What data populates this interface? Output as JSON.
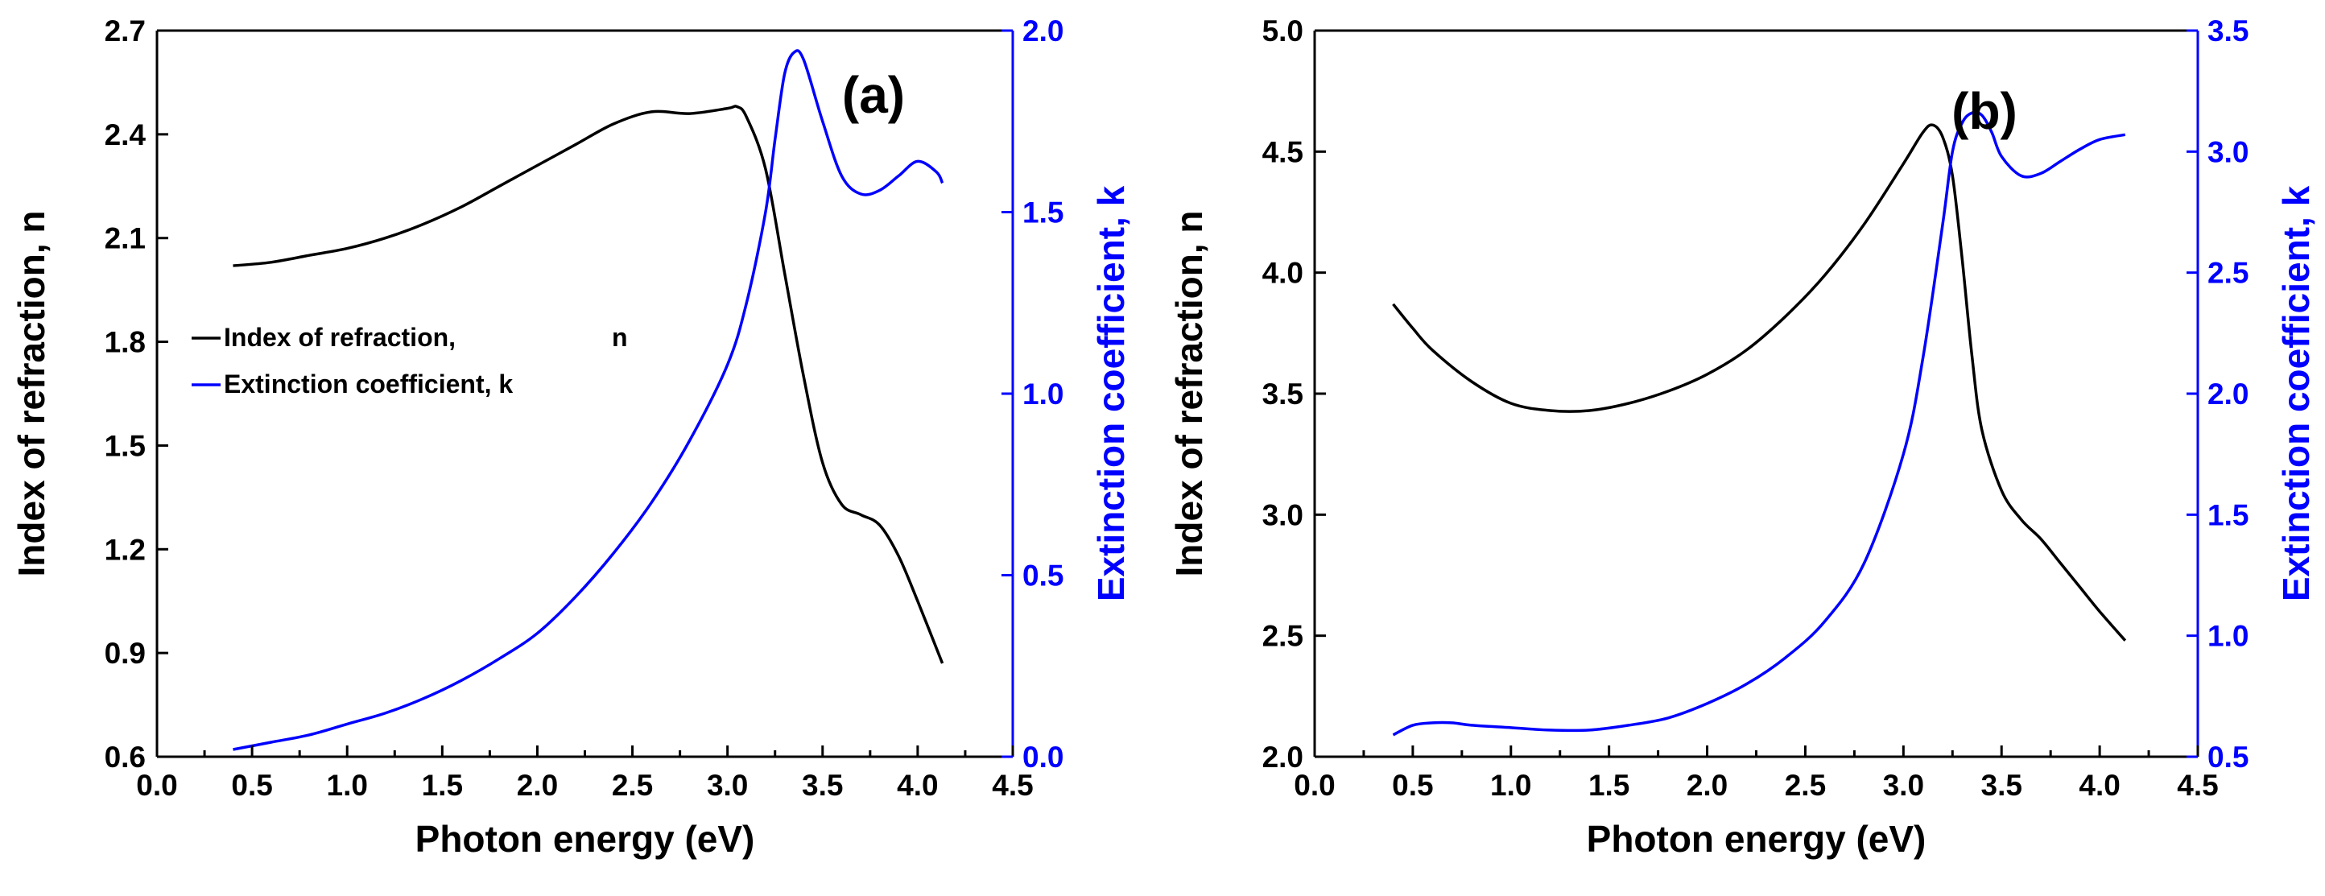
{
  "chart_data": [
    {
      "type": "line",
      "panel_label": "(a)",
      "xlabel": "Photon energy (eV)",
      "ylabel_left": "Index of refraction, n",
      "ylabel_right": "Extinction coefficient, k",
      "xlim": [
        0.0,
        4.5
      ],
      "ylim_left": [
        0.6,
        2.7
      ],
      "ylim_right": [
        0.0,
        2.0
      ],
      "x_ticks": [
        "0.0",
        "0.5",
        "1.0",
        "1.5",
        "2.0",
        "2.5",
        "3.0",
        "3.5",
        "4.0",
        "4.5"
      ],
      "y_left_ticks": [
        "0.6",
        "0.9",
        "1.2",
        "1.5",
        "1.8",
        "2.1",
        "2.4",
        "2.7"
      ],
      "y_right_ticks": [
        "0.0",
        "0.5",
        "1.0",
        "1.5",
        "2.0"
      ],
      "legend": [
        {
          "label": "Index of refraction,",
          "symbol": "n",
          "color": "#000000"
        },
        {
          "label": "Extinction coefficient, k",
          "symbol": "",
          "color": "#0000ff"
        }
      ],
      "series": [
        {
          "name": "Index of refraction, n",
          "axis": "left",
          "color": "#000000",
          "x": [
            0.4,
            0.6,
            0.8,
            1.0,
            1.2,
            1.4,
            1.6,
            1.8,
            2.0,
            2.2,
            2.4,
            2.6,
            2.8,
            3.0,
            3.05,
            3.1,
            3.2,
            3.3,
            3.4,
            3.5,
            3.6,
            3.7,
            3.8,
            3.9,
            4.0,
            4.13
          ],
          "y": [
            2.02,
            2.03,
            2.05,
            2.07,
            2.1,
            2.14,
            2.19,
            2.25,
            2.31,
            2.37,
            2.43,
            2.465,
            2.46,
            2.475,
            2.48,
            2.45,
            2.3,
            2.0,
            1.7,
            1.45,
            1.33,
            1.3,
            1.27,
            1.18,
            1.05,
            0.87
          ]
        },
        {
          "name": "Extinction coefficient, k",
          "axis": "right",
          "color": "#0000ff",
          "x": [
            0.4,
            0.6,
            0.8,
            1.0,
            1.2,
            1.4,
            1.6,
            1.8,
            2.0,
            2.2,
            2.4,
            2.6,
            2.8,
            3.0,
            3.1,
            3.2,
            3.25,
            3.3,
            3.35,
            3.4,
            3.5,
            3.6,
            3.7,
            3.8,
            3.9,
            4.0,
            4.1,
            4.13
          ],
          "y": [
            0.02,
            0.04,
            0.06,
            0.09,
            0.12,
            0.16,
            0.21,
            0.27,
            0.34,
            0.44,
            0.56,
            0.7,
            0.87,
            1.08,
            1.25,
            1.5,
            1.7,
            1.88,
            1.94,
            1.92,
            1.75,
            1.6,
            1.55,
            1.56,
            1.6,
            1.64,
            1.61,
            1.58
          ]
        }
      ]
    },
    {
      "type": "line",
      "panel_label": "(b)",
      "xlabel": "Photon energy (eV)",
      "ylabel_left": "Index of refraction, n",
      "ylabel_right": "Extinction coefficient, k",
      "xlim": [
        0.0,
        4.5
      ],
      "ylim_left": [
        2.0,
        5.0
      ],
      "ylim_right": [
        0.5,
        3.5
      ],
      "x_ticks": [
        "0.0",
        "0.5",
        "1.0",
        "1.5",
        "2.0",
        "2.5",
        "3.0",
        "3.5",
        "4.0",
        "4.5"
      ],
      "y_left_ticks": [
        "2.0",
        "2.5",
        "3.0",
        "3.5",
        "4.0",
        "4.5",
        "5.0"
      ],
      "y_right_ticks": [
        "0.5",
        "1.0",
        "1.5",
        "2.0",
        "2.5",
        "3.0",
        "3.5"
      ],
      "series": [
        {
          "name": "Index of refraction, n",
          "axis": "left",
          "color": "#000000",
          "x": [
            0.4,
            0.5,
            0.6,
            0.8,
            1.0,
            1.2,
            1.4,
            1.6,
            1.8,
            2.0,
            2.2,
            2.4,
            2.6,
            2.8,
            3.0,
            3.1,
            3.15,
            3.2,
            3.25,
            3.3,
            3.35,
            3.4,
            3.5,
            3.6,
            3.7,
            3.8,
            3.9,
            4.0,
            4.13
          ],
          "y": [
            3.87,
            3.77,
            3.68,
            3.55,
            3.46,
            3.43,
            3.43,
            3.46,
            3.51,
            3.58,
            3.68,
            3.82,
            3.99,
            4.2,
            4.45,
            4.58,
            4.61,
            4.56,
            4.4,
            4.05,
            3.65,
            3.35,
            3.1,
            2.98,
            2.9,
            2.8,
            2.7,
            2.6,
            2.48
          ]
        },
        {
          "name": "Extinction coefficient, k",
          "axis": "right",
          "color": "#0000ff",
          "x": [
            0.4,
            0.5,
            0.6,
            0.7,
            0.8,
            1.0,
            1.2,
            1.4,
            1.6,
            1.8,
            2.0,
            2.2,
            2.4,
            2.6,
            2.8,
            3.0,
            3.1,
            3.2,
            3.25,
            3.3,
            3.35,
            3.4,
            3.45,
            3.5,
            3.6,
            3.7,
            3.8,
            3.9,
            4.0,
            4.13
          ],
          "y": [
            0.59,
            0.63,
            0.64,
            0.64,
            0.63,
            0.62,
            0.61,
            0.61,
            0.63,
            0.66,
            0.72,
            0.8,
            0.91,
            1.06,
            1.3,
            1.75,
            2.15,
            2.7,
            3.0,
            3.12,
            3.16,
            3.15,
            3.08,
            2.98,
            2.9,
            2.91,
            2.96,
            3.01,
            3.05,
            3.07
          ]
        }
      ]
    }
  ]
}
